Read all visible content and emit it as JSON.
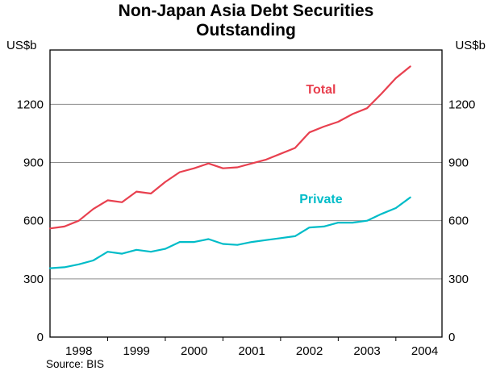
{
  "axes": {
    "unit_left": "US$b",
    "unit_right": "US$b"
  },
  "chart_data": {
    "type": "line",
    "title": "Non-Japan Asia Debt Securities Outstanding",
    "source": "Source: BIS",
    "ylabel": "US$b",
    "ylim": [
      0,
      1480
    ],
    "xlim": [
      1997.5,
      2004.3
    ],
    "y_ticks": [
      0,
      300,
      600,
      900,
      1200
    ],
    "x_ticks": [
      1998,
      1999,
      2000,
      2001,
      2002,
      2003,
      2004
    ],
    "grid": true,
    "legend_position": "inline-labels",
    "x": [
      1997.5,
      1997.75,
      1998,
      1998.25,
      1998.5,
      1998.75,
      1999,
      1999.25,
      1999.5,
      1999.75,
      2000,
      2000.25,
      2000.5,
      2000.75,
      2001,
      2001.25,
      2001.5,
      2001.75,
      2002,
      2002.25,
      2002.5,
      2002.75,
      2003,
      2003.25,
      2003.5,
      2003.75
    ],
    "series": [
      {
        "name": "Total",
        "color": "#e8404f",
        "label": {
          "x": 2002.2,
          "y": 1276
        },
        "values": [
          560,
          570,
          600,
          660,
          705,
          695,
          750,
          740,
          800,
          850,
          870,
          895,
          870,
          875,
          895,
          915,
          945,
          975,
          1055,
          1085,
          1110,
          1150,
          1180,
          1255,
          1335,
          1395
        ]
      },
      {
        "name": "Private",
        "color": "#00bcc8",
        "label": {
          "x": 2002.2,
          "y": 711
        },
        "values": [
          355,
          360,
          375,
          395,
          440,
          430,
          450,
          440,
          455,
          490,
          490,
          505,
          480,
          475,
          490,
          500,
          510,
          520,
          565,
          570,
          590,
          590,
          600,
          635,
          665,
          720
        ]
      }
    ]
  }
}
